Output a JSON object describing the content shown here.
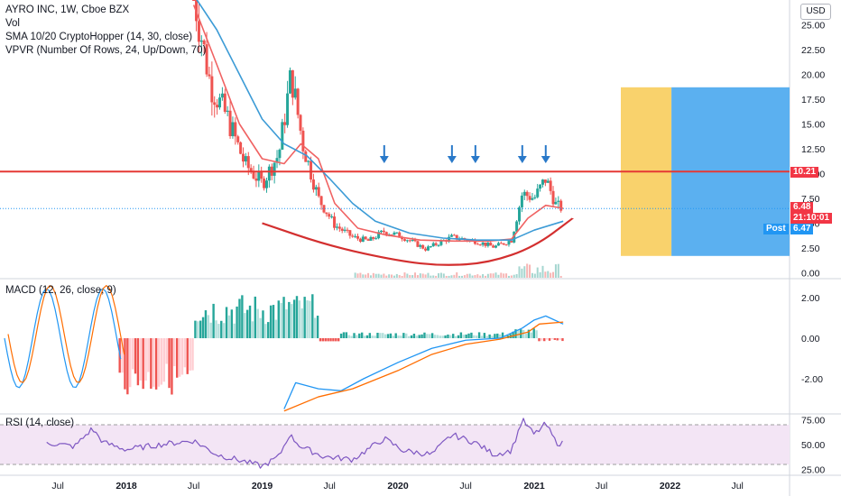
{
  "header": {
    "title": "AYRO INC, 1W, Cboe BZX",
    "lines": [
      "Vol",
      "SMA 10/20 CryptoHopper (14, 30, close)",
      "VPVR (Number Of Rows, 24, Up/Down, 70)"
    ],
    "currency_button": "USD"
  },
  "price_tags": {
    "resistance": "10.21",
    "last": "6.48",
    "countdown": "21:10:01",
    "post_label": "Post",
    "post": "6.47"
  },
  "panes": {
    "macd_title": "MACD (12, 26, close, 9)",
    "rsi_title": "RSI (14, close)"
  },
  "chart_data": [
    {
      "type": "candlestick",
      "title": "AYRO INC, 1W, Cboe BZX",
      "y_ticks": [
        "25.00",
        "22.50",
        "20.00",
        "17.50",
        "15.00",
        "12.50",
        "10.00",
        "7.50",
        "5.00",
        "2.50",
        "0.00"
      ],
      "y_tick_values": [
        25,
        22.5,
        20,
        17.5,
        15,
        12.5,
        10,
        7.5,
        5,
        2.5,
        0
      ],
      "ylim": [
        -0.5,
        27.5
      ],
      "x_tick_labels": [
        "Jul",
        "2018",
        "Jul",
        "2019",
        "Jul",
        "2020",
        "Jul",
        "2021",
        "Jul",
        "2022",
        "Jul"
      ],
      "x_tick_dates": [
        "2017-07-01",
        "2018-01-01",
        "2018-07-01",
        "2019-01-01",
        "2019-07-01",
        "2020-01-01",
        "2020-07-01",
        "2021-01-01",
        "2021-07-01",
        "2022-01-01",
        "2022-07-01"
      ],
      "resistance_level": 10.21,
      "last_price": 6.48,
      "post_price": 6.47,
      "arrow_dates": [
        "2019-11-25",
        "2020-05-25",
        "2020-07-27",
        "2020-11-30",
        "2021-02-01"
      ],
      "close_path": [
        {
          "t": "2018-07-01",
          "y": 28.0
        },
        {
          "t": "2018-08-15",
          "y": 19.0
        },
        {
          "t": "2018-10-01",
          "y": 15.5
        },
        {
          "t": "2018-11-15",
          "y": 11.0
        },
        {
          "t": "2019-01-01",
          "y": 9.0
        },
        {
          "t": "2019-02-15",
          "y": 12.0
        },
        {
          "t": "2019-03-20",
          "y": 20.0
        },
        {
          "t": "2019-04-20",
          "y": 13.0
        },
        {
          "t": "2019-06-01",
          "y": 7.5
        },
        {
          "t": "2019-07-15",
          "y": 4.8
        },
        {
          "t": "2019-09-01",
          "y": 3.6
        },
        {
          "t": "2019-10-15",
          "y": 3.2
        },
        {
          "t": "2019-11-25",
          "y": 4.2
        },
        {
          "t": "2020-01-15",
          "y": 3.6
        },
        {
          "t": "2020-03-15",
          "y": 2.4
        },
        {
          "t": "2020-05-25",
          "y": 3.6
        },
        {
          "t": "2020-07-27",
          "y": 3.2
        },
        {
          "t": "2020-09-15",
          "y": 2.6
        },
        {
          "t": "2020-11-01",
          "y": 3.3
        },
        {
          "t": "2020-11-30",
          "y": 8.0
        },
        {
          "t": "2021-01-01",
          "y": 7.5
        },
        {
          "t": "2021-02-01",
          "y": 9.5
        },
        {
          "t": "2021-03-01",
          "y": 6.8
        },
        {
          "t": "2021-03-20",
          "y": 6.48
        }
      ],
      "ma_fast": [
        {
          "t": "2018-07-01",
          "y": 27.0
        },
        {
          "t": "2018-09-01",
          "y": 21.0
        },
        {
          "t": "2018-11-01",
          "y": 15.0
        },
        {
          "t": "2019-01-01",
          "y": 11.5
        },
        {
          "t": "2019-03-01",
          "y": 11.0
        },
        {
          "t": "2019-04-15",
          "y": 13.0
        },
        {
          "t": "2019-06-01",
          "y": 11.5
        },
        {
          "t": "2019-07-15",
          "y": 7.0
        },
        {
          "t": "2019-09-15",
          "y": 4.5
        },
        {
          "t": "2019-12-01",
          "y": 3.8
        },
        {
          "t": "2020-03-01",
          "y": 3.3
        },
        {
          "t": "2020-06-01",
          "y": 3.2
        },
        {
          "t": "2020-09-01",
          "y": 3.2
        },
        {
          "t": "2020-11-01",
          "y": 3.4
        },
        {
          "t": "2020-12-15",
          "y": 5.5
        },
        {
          "t": "2021-02-01",
          "y": 6.8
        },
        {
          "t": "2021-03-20",
          "y": 6.5
        }
      ],
      "ma_slow": [
        {
          "t": "2018-07-01",
          "y": 28.0
        },
        {
          "t": "2018-09-01",
          "y": 24.5
        },
        {
          "t": "2018-11-01",
          "y": 20.0
        },
        {
          "t": "2019-01-01",
          "y": 15.5
        },
        {
          "t": "2019-03-01",
          "y": 13.0
        },
        {
          "t": "2019-05-01",
          "y": 11.8
        },
        {
          "t": "2019-07-01",
          "y": 9.5
        },
        {
          "t": "2019-09-01",
          "y": 7.0
        },
        {
          "t": "2019-11-01",
          "y": 5.2
        },
        {
          "t": "2020-02-01",
          "y": 4.0
        },
        {
          "t": "2020-05-01",
          "y": 3.5
        },
        {
          "t": "2020-08-01",
          "y": 3.3
        },
        {
          "t": "2020-11-01",
          "y": 3.3
        },
        {
          "t": "2021-01-01",
          "y": 4.3
        },
        {
          "t": "2021-03-20",
          "y": 5.2
        }
      ],
      "cup_curve": [
        {
          "t": "2019-01-01",
          "y": 5.0
        },
        {
          "t": "2019-07-01",
          "y": 2.7
        },
        {
          "t": "2020-01-01",
          "y": 1.2
        },
        {
          "t": "2020-05-01",
          "y": 0.7
        },
        {
          "t": "2020-09-01",
          "y": 1.0
        },
        {
          "t": "2021-01-01",
          "y": 2.6
        },
        {
          "t": "2021-04-15",
          "y": 5.5
        }
      ],
      "volume_profile": {
        "price_range": [
          1.7,
          18.7
        ],
        "split_fraction": 0.3,
        "colors": [
          "#f9d26c",
          "#5bb0f0"
        ]
      }
    },
    {
      "type": "line",
      "title": "MACD (12, 26, close, 9)",
      "y_ticks": [
        "2.00",
        "0.00",
        "-2.00"
      ],
      "y_tick_values": [
        2,
        0,
        -2
      ],
      "ylim": [
        -3.7,
        2.9
      ],
      "series": [
        {
          "name": "MACD",
          "color": "#2196f3",
          "points": [
            {
              "t": "2019-03-01",
              "y": -3.5
            },
            {
              "t": "2019-04-01",
              "y": -2.2
            },
            {
              "t": "2019-06-01",
              "y": -2.5
            },
            {
              "t": "2019-08-01",
              "y": -2.6
            },
            {
              "t": "2019-10-01",
              "y": -2.0
            },
            {
              "t": "2020-01-01",
              "y": -1.2
            },
            {
              "t": "2020-04-01",
              "y": -0.5
            },
            {
              "t": "2020-07-01",
              "y": -0.1
            },
            {
              "t": "2020-10-01",
              "y": 0.0
            },
            {
              "t": "2020-11-30",
              "y": 0.5
            },
            {
              "t": "2021-01-01",
              "y": 0.9
            },
            {
              "t": "2021-02-01",
              "y": 1.1
            },
            {
              "t": "2021-03-20",
              "y": 0.7
            }
          ]
        },
        {
          "name": "Signal",
          "color": "#ff6d00",
          "points": [
            {
              "t": "2019-03-01",
              "y": -3.6
            },
            {
              "t": "2019-06-01",
              "y": -2.9
            },
            {
              "t": "2019-09-01",
              "y": -2.5
            },
            {
              "t": "2020-01-01",
              "y": -1.6
            },
            {
              "t": "2020-04-01",
              "y": -0.8
            },
            {
              "t": "2020-07-01",
              "y": -0.3
            },
            {
              "t": "2020-10-01",
              "y": -0.05
            },
            {
              "t": "2020-12-15",
              "y": 0.3
            },
            {
              "t": "2021-01-15",
              "y": 0.7
            },
            {
              "t": "2021-03-20",
              "y": 0.8
            }
          ]
        }
      ]
    },
    {
      "type": "line",
      "title": "RSI (14, close)",
      "y_ticks": [
        "75.00",
        "50.00",
        "25.00"
      ],
      "y_tick_values": [
        75,
        50,
        25
      ],
      "ylim": [
        20,
        80
      ],
      "bands": [
        30,
        70
      ],
      "series": [
        {
          "name": "RSI",
          "color": "#7e57c2",
          "points": [
            {
              "t": "2017-06-01",
              "y": 52
            },
            {
              "t": "2017-08-15",
              "y": 48
            },
            {
              "t": "2017-10-01",
              "y": 66
            },
            {
              "t": "2017-11-01",
              "y": 52
            },
            {
              "t": "2018-01-01",
              "y": 45
            },
            {
              "t": "2018-04-01",
              "y": 50
            },
            {
              "t": "2018-07-01",
              "y": 54
            },
            {
              "t": "2018-09-01",
              "y": 40
            },
            {
              "t": "2018-11-15",
              "y": 33
            },
            {
              "t": "2019-01-01",
              "y": 28
            },
            {
              "t": "2019-02-15",
              "y": 38
            },
            {
              "t": "2019-03-15",
              "y": 60
            },
            {
              "t": "2019-04-15",
              "y": 48
            },
            {
              "t": "2019-06-15",
              "y": 38
            },
            {
              "t": "2019-09-01",
              "y": 35
            },
            {
              "t": "2019-11-25",
              "y": 56
            },
            {
              "t": "2020-01-15",
              "y": 44
            },
            {
              "t": "2020-04-01",
              "y": 40
            },
            {
              "t": "2020-05-25",
              "y": 60
            },
            {
              "t": "2020-07-27",
              "y": 52
            },
            {
              "t": "2020-09-15",
              "y": 40
            },
            {
              "t": "2020-11-01",
              "y": 44
            },
            {
              "t": "2020-11-30",
              "y": 75
            },
            {
              "t": "2021-01-01",
              "y": 60
            },
            {
              "t": "2021-02-01",
              "y": 71
            },
            {
              "t": "2021-03-01",
              "y": 52
            },
            {
              "t": "2021-03-20",
              "y": 51
            }
          ]
        }
      ]
    }
  ]
}
